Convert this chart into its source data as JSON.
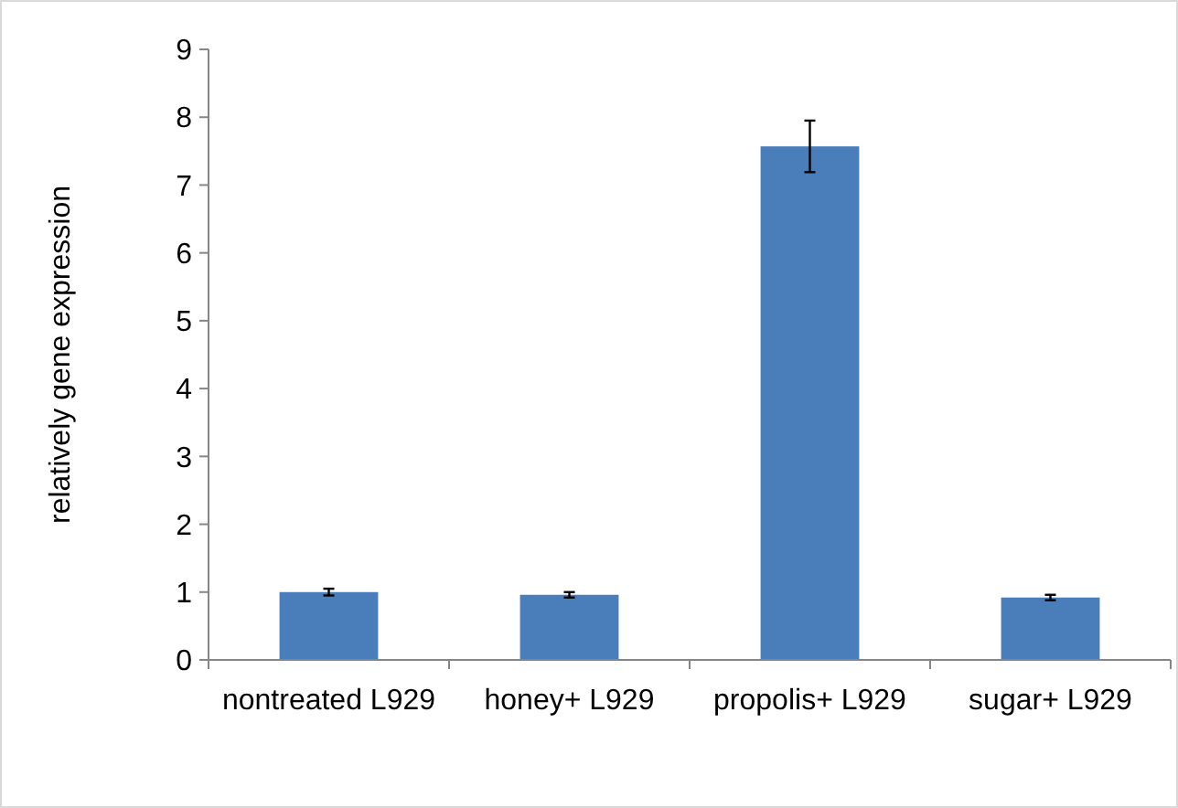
{
  "chart_data": {
    "type": "bar",
    "ylabel": "relatively gene expression",
    "categories": [
      "nontreated L929",
      "honey+ L929",
      "propolis+ L929",
      "sugar+ L929"
    ],
    "values": [
      1.0,
      0.96,
      7.57,
      0.92
    ],
    "errors": [
      0.05,
      0.04,
      0.38,
      0.04
    ],
    "color": "#4a7ebb",
    "ylim": [
      0,
      9
    ],
    "yticks": [
      0,
      1,
      2,
      3,
      4,
      5,
      6,
      7,
      8,
      9
    ],
    "grid": false
  }
}
